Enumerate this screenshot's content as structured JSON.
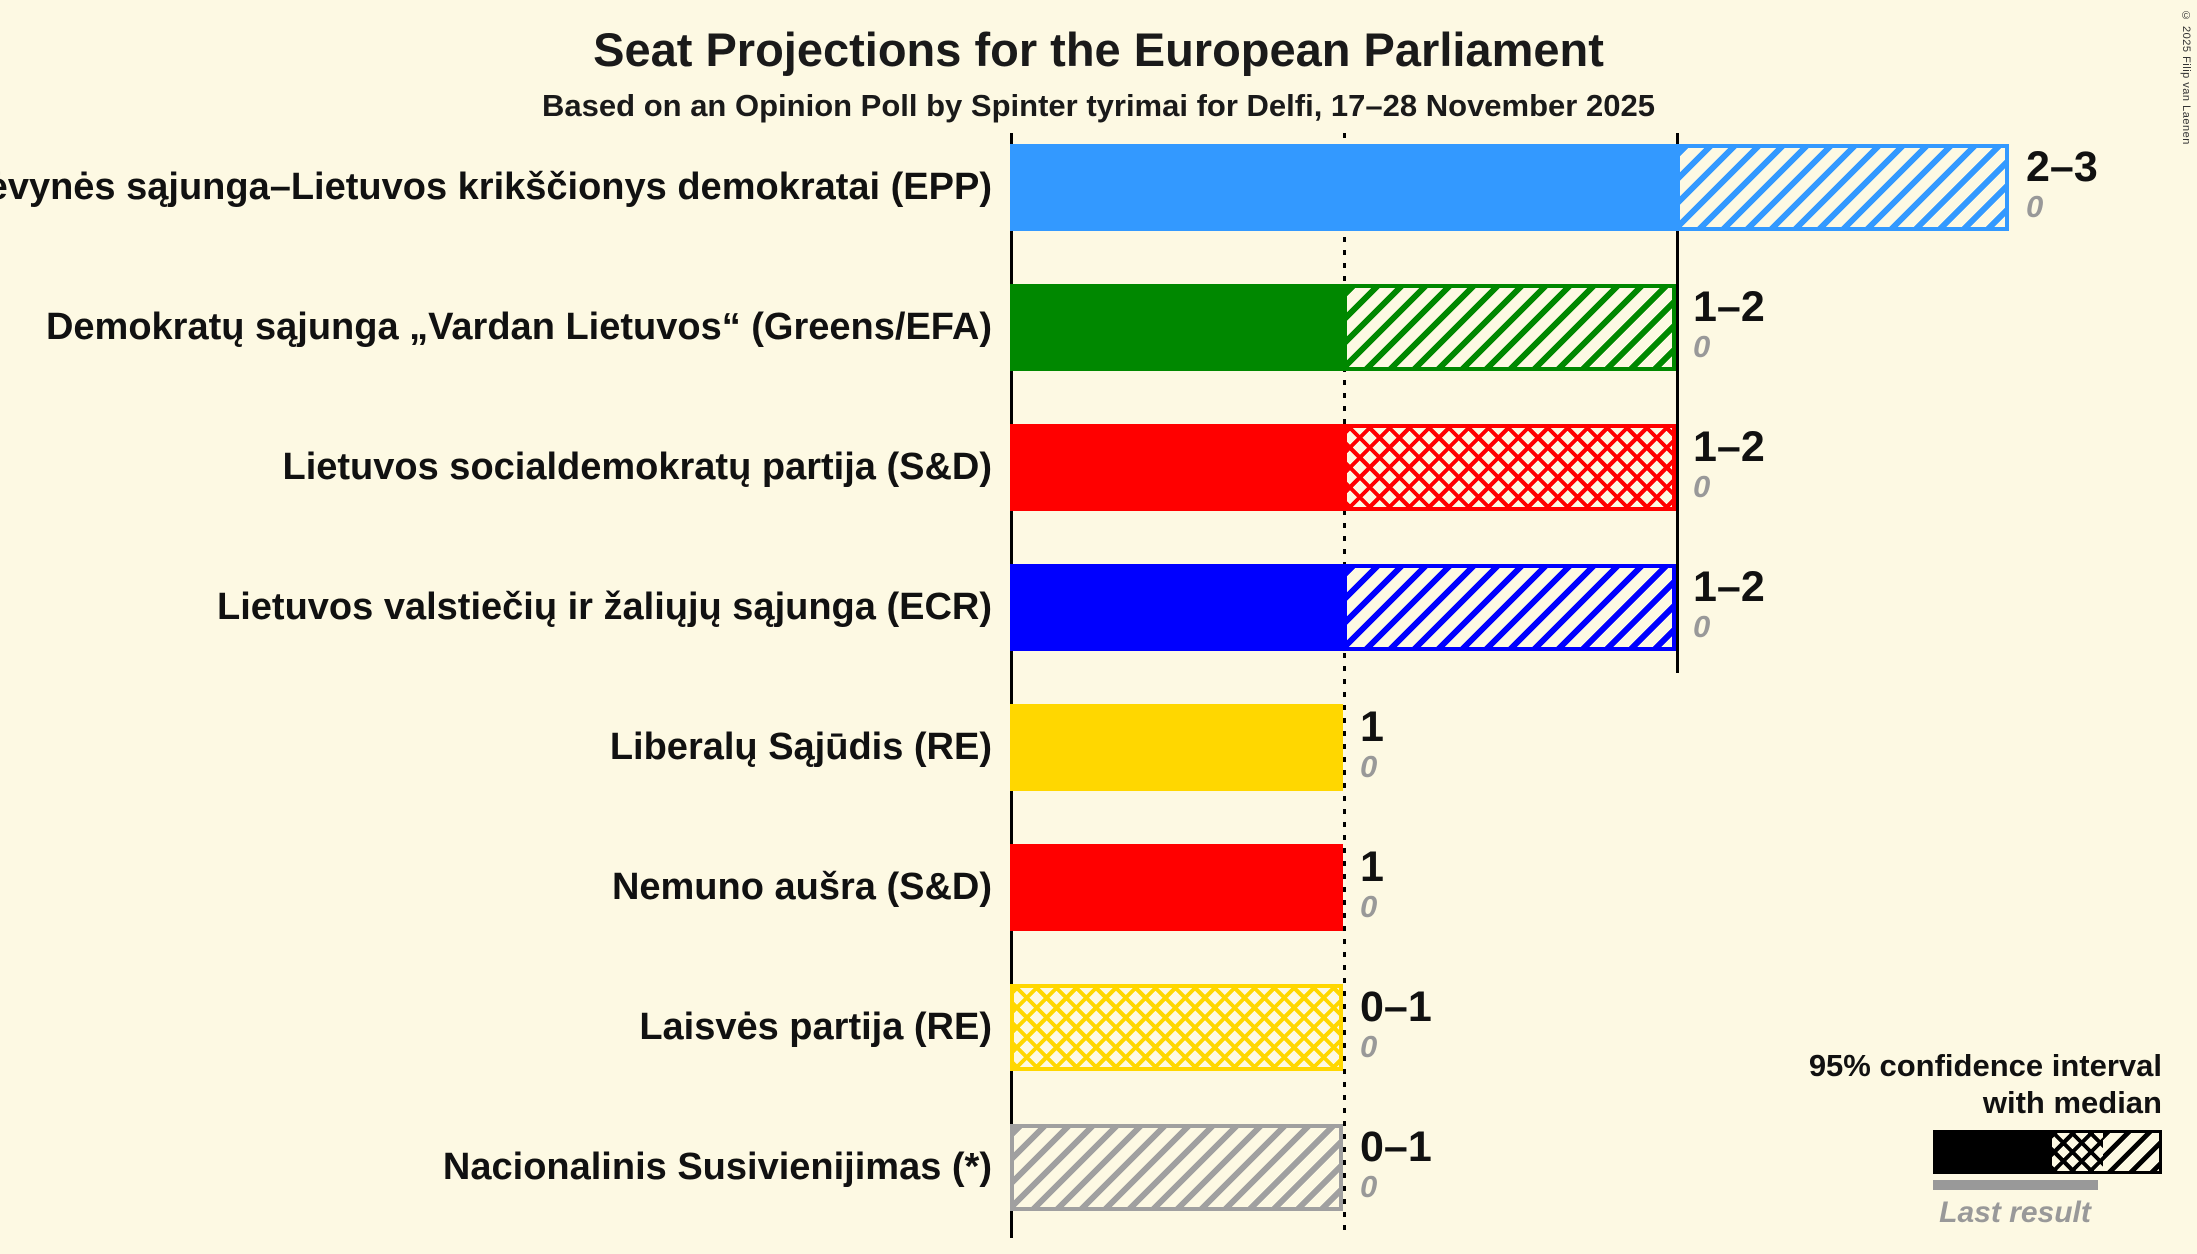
{
  "header": {
    "title": "Seat Projections for the European Parliament",
    "subtitle": "Based on an Opinion Poll by Spinter tyrimai for Delfi, 17–28 November 2025"
  },
  "copyright": "© 2025 Filip van Laenen",
  "legend": {
    "ci_line1": "95% confidence interval",
    "ci_line2": "with median",
    "last_result_label": "Last result"
  },
  "chart_data": {
    "type": "bar",
    "orientation": "horizontal",
    "unit": "seats",
    "x_axis": {
      "min": 0,
      "max": 3,
      "zero_line": 0,
      "dotted_line_at": 1,
      "solid_line_at": 2,
      "tick_labels_visible": false
    },
    "parties": [
      {
        "label": "Tėvynės sąjunga–Lietuvos krikščionys demokratai (EPP)",
        "value_label": "2–3",
        "last_result": "0",
        "ci_low": 2,
        "ci_high": 3,
        "median": 2,
        "color": "#3399ff",
        "solid_to": 2,
        "hatch": {
          "from": 2,
          "to": 3,
          "pattern": "diagonal"
        }
      },
      {
        "label": "Demokratų sąjunga „Vardan Lietuvos“ (Greens/EFA)",
        "value_label": "1–2",
        "last_result": "0",
        "ci_low": 1,
        "ci_high": 2,
        "median": 1,
        "color": "#008800",
        "solid_to": 1,
        "hatch": {
          "from": 1,
          "to": 2,
          "pattern": "diagonal"
        }
      },
      {
        "label": "Lietuvos socialdemokratų partija (S&D)",
        "value_label": "1–2",
        "last_result": "0",
        "ci_low": 1,
        "ci_high": 2,
        "median": 2,
        "color": "#ff0000",
        "solid_to": 1,
        "hatch": {
          "from": 1,
          "to": 2,
          "pattern": "cross"
        }
      },
      {
        "label": "Lietuvos valstiečių ir žaliųjų sąjunga (ECR)",
        "value_label": "1–2",
        "last_result": "0",
        "ci_low": 1,
        "ci_high": 2,
        "median": 1,
        "color": "#0000ff",
        "solid_to": 1,
        "hatch": {
          "from": 1,
          "to": 2,
          "pattern": "diagonal"
        }
      },
      {
        "label": "Liberalų Sąjūdis (RE)",
        "value_label": "1",
        "last_result": "0",
        "ci_low": 1,
        "ci_high": 1,
        "median": 1,
        "color": "#ffd700",
        "solid_to": 1,
        "hatch": null
      },
      {
        "label": "Nemuno aušra (S&D)",
        "value_label": "1",
        "last_result": "0",
        "ci_low": 1,
        "ci_high": 1,
        "median": 1,
        "color": "#ff0000",
        "solid_to": 1,
        "hatch": null
      },
      {
        "label": "Laisvės partija (RE)",
        "value_label": "0–1",
        "last_result": "0",
        "ci_low": 0,
        "ci_high": 1,
        "median": 1,
        "color": "#ffd700",
        "solid_to": 0,
        "hatch": {
          "from": 0,
          "to": 1,
          "pattern": "cross"
        }
      },
      {
        "label": "Nacionalinis Susivienijimas (*)",
        "value_label": "0–1",
        "last_result": "0",
        "ci_low": 0,
        "ci_high": 1,
        "median": 0,
        "color": "#a0a0a0",
        "solid_to": 0,
        "hatch": {
          "from": 0,
          "to": 1,
          "pattern": "diagonal"
        }
      }
    ]
  }
}
